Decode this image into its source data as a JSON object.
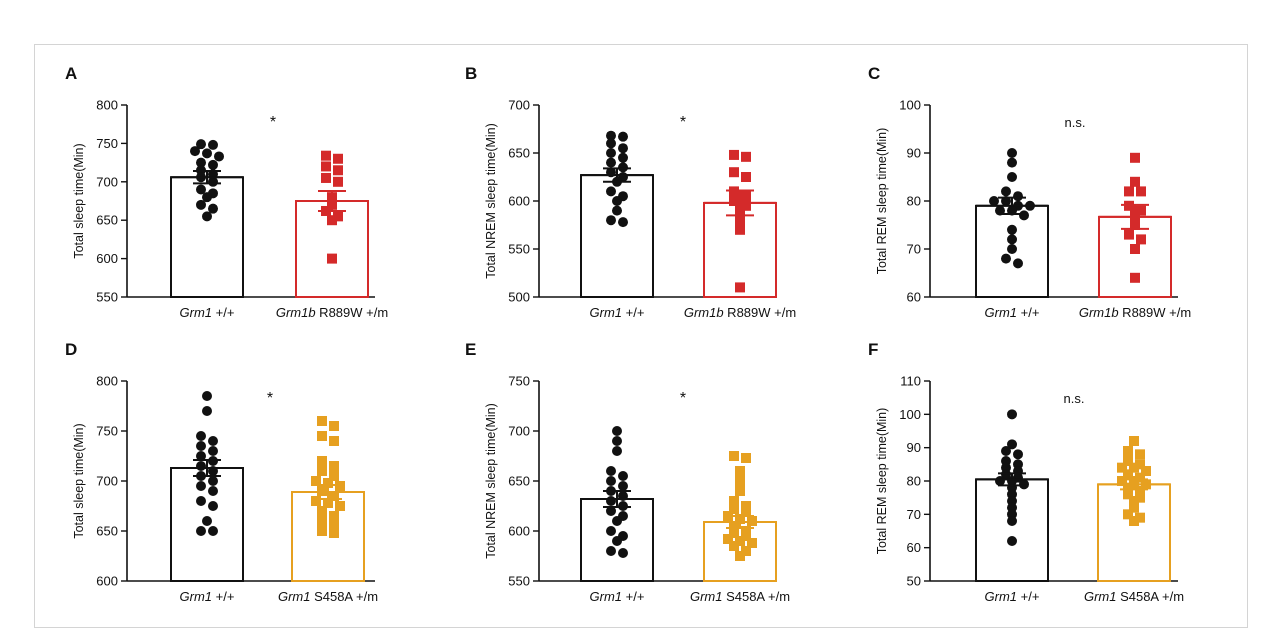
{
  "colors": {
    "wildtype": "#111111",
    "r889w": "#d42a2a",
    "s458a": "#e6a020",
    "axis": "#111111"
  },
  "chart_data": [
    {
      "type": "bar",
      "panel": "A",
      "ylabel": "Total sleep time(Min)",
      "ylim": [
        550,
        800
      ],
      "yticks": [
        550,
        600,
        650,
        700,
        750,
        800
      ],
      "categories": [
        {
          "gene": "Grm1",
          "suffix": " +/+"
        },
        {
          "gene": "Grm1b",
          "suffix": " R889W +/m"
        }
      ],
      "annotation": "*",
      "series": [
        {
          "mean": 706,
          "sem": 8,
          "color": "wildtype",
          "marker": "circle",
          "points": [
            748,
            749,
            740,
            737,
            733,
            725,
            722,
            715,
            710,
            706,
            700,
            690,
            685,
            680,
            670,
            665,
            655
          ]
        },
        {
          "mean": 675,
          "sem": 13,
          "color": "r889w",
          "marker": "square",
          "points": [
            734,
            730,
            720,
            715,
            705,
            700,
            680,
            670,
            662,
            655,
            650,
            600
          ]
        }
      ]
    },
    {
      "type": "bar",
      "panel": "B",
      "ylabel": "Total NREM sleep time(Min)",
      "ylim": [
        500,
        700
      ],
      "yticks": [
        500,
        550,
        600,
        650,
        700
      ],
      "categories": [
        {
          "gene": "Grm1",
          "suffix": " +/+"
        },
        {
          "gene": "Grm1b",
          "suffix": " R889W +/m"
        }
      ],
      "annotation": "*",
      "series": [
        {
          "mean": 627,
          "sem": 7,
          "color": "wildtype",
          "marker": "circle",
          "points": [
            668,
            667,
            660,
            655,
            650,
            645,
            640,
            635,
            630,
            625,
            620,
            610,
            605,
            600,
            590,
            580,
            578
          ]
        },
        {
          "mean": 598,
          "sem": 13,
          "color": "r889w",
          "marker": "square",
          "points": [
            648,
            646,
            630,
            625,
            610,
            605,
            600,
            595,
            590,
            580,
            570,
            510
          ]
        }
      ]
    },
    {
      "type": "bar",
      "panel": "C",
      "ylabel": "Total REM sleep time(Min)",
      "ylim": [
        60,
        100
      ],
      "yticks": [
        60,
        70,
        80,
        90,
        100
      ],
      "categories": [
        {
          "gene": "Grm1",
          "suffix": " +/+"
        },
        {
          "gene": "Grm1b",
          "suffix": " R889W +/m"
        }
      ],
      "annotation": "n.s.",
      "series": [
        {
          "mean": 79,
          "sem": 1.7,
          "color": "wildtype",
          "marker": "circle",
          "points": [
            90,
            88,
            85,
            82,
            81,
            80,
            80,
            79,
            79,
            78,
            78,
            77,
            74,
            72,
            70,
            68,
            67
          ]
        },
        {
          "mean": 76.7,
          "sem": 2.5,
          "color": "r889w",
          "marker": "square",
          "points": [
            89,
            84,
            82,
            82,
            79,
            78,
            77,
            75,
            73,
            72,
            70,
            64
          ]
        }
      ]
    },
    {
      "type": "bar",
      "panel": "D",
      "ylabel": "Total sleep time(Min)",
      "ylim": [
        600,
        800
      ],
      "yticks": [
        600,
        650,
        700,
        750,
        800
      ],
      "categories": [
        {
          "gene": "Grm1",
          "suffix": " +/+"
        },
        {
          "gene": "Grm1",
          "suffix": " S458A +/m"
        }
      ],
      "annotation": "*",
      "series": [
        {
          "mean": 713,
          "sem": 8,
          "color": "wildtype",
          "marker": "circle",
          "points": [
            785,
            770,
            745,
            740,
            735,
            730,
            725,
            720,
            715,
            710,
            705,
            700,
            695,
            690,
            680,
            675,
            660,
            650,
            650
          ]
        },
        {
          "mean": 689,
          "sem": 7,
          "color": "s458a",
          "marker": "square",
          "points": [
            760,
            755,
            745,
            740,
            720,
            715,
            710,
            705,
            700,
            698,
            695,
            690,
            685,
            680,
            678,
            675,
            670,
            665,
            660,
            655,
            650,
            648
          ]
        }
      ]
    },
    {
      "type": "bar",
      "panel": "E",
      "ylabel": "Total NREM sleep time(Min)",
      "ylim": [
        550,
        750
      ],
      "yticks": [
        550,
        600,
        650,
        700,
        750
      ],
      "categories": [
        {
          "gene": "Grm1",
          "suffix": " +/+"
        },
        {
          "gene": "Grm1",
          "suffix": " S458A +/m"
        }
      ],
      "annotation": "*",
      "series": [
        {
          "mean": 632,
          "sem": 8,
          "color": "wildtype",
          "marker": "circle",
          "points": [
            700,
            690,
            680,
            660,
            655,
            650,
            645,
            640,
            635,
            630,
            625,
            620,
            615,
            610,
            600,
            595,
            590,
            580,
            578
          ]
        },
        {
          "mean": 609,
          "sem": 6,
          "color": "s458a",
          "marker": "square",
          "points": [
            675,
            673,
            660,
            650,
            640,
            630,
            625,
            622,
            620,
            615,
            612,
            610,
            605,
            600,
            598,
            595,
            592,
            590,
            588,
            585,
            580,
            575
          ]
        }
      ]
    },
    {
      "type": "bar",
      "panel": "F",
      "ylabel": "Total REM sleep time(Min)",
      "ylim": [
        50,
        110
      ],
      "yticks": [
        50,
        60,
        70,
        80,
        90,
        100,
        110
      ],
      "categories": [
        {
          "gene": "Grm1",
          "suffix": " +/+"
        },
        {
          "gene": "Grm1",
          "suffix": " S458A +/m"
        }
      ],
      "annotation": "n.s.",
      "series": [
        {
          "mean": 80.5,
          "sem": 1.8,
          "color": "wildtype",
          "marker": "circle",
          "points": [
            100,
            91,
            89,
            88,
            86,
            85,
            84,
            83,
            82,
            81,
            80,
            80,
            79,
            78,
            76,
            74,
            72,
            70,
            68,
            62
          ]
        },
        {
          "mean": 79,
          "sem": 1.5,
          "color": "s458a",
          "marker": "square",
          "points": [
            92,
            89,
            88,
            86,
            85,
            84,
            84,
            83,
            82,
            81,
            80,
            80,
            79,
            78,
            77,
            76,
            75,
            74,
            72,
            70,
            69,
            68
          ]
        }
      ]
    }
  ]
}
